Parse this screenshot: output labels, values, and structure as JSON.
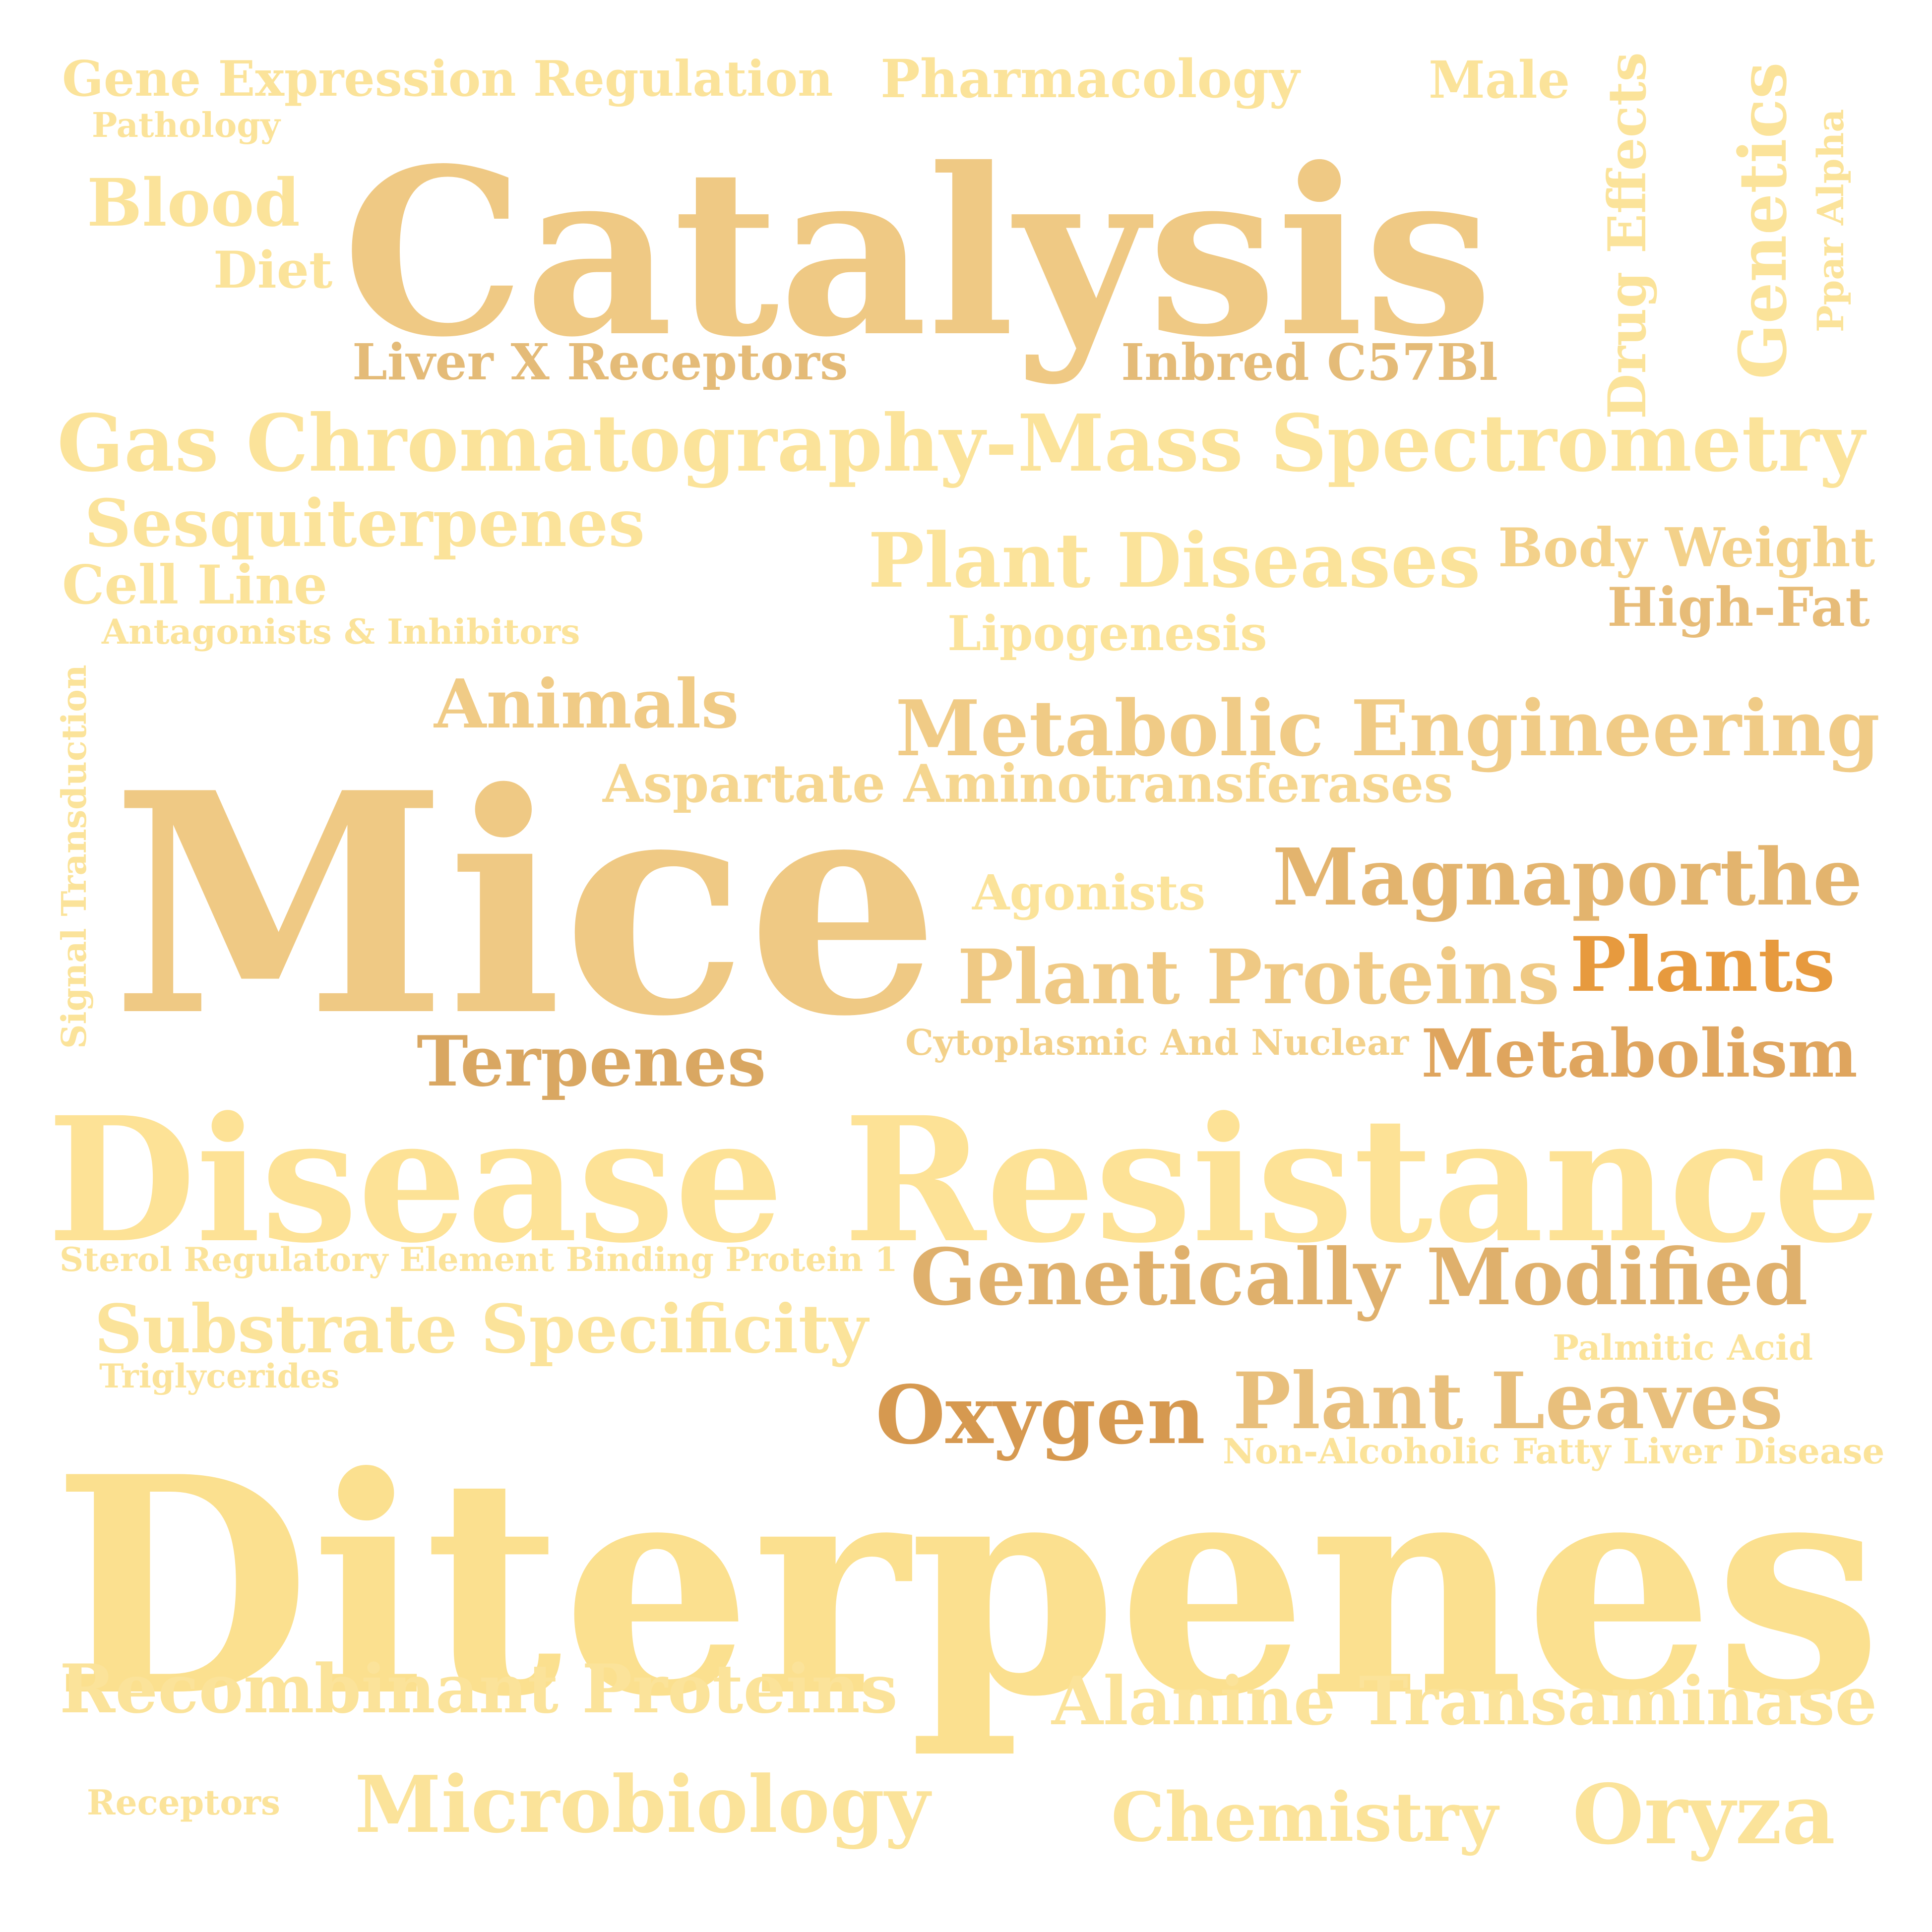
{
  "words": [
    {
      "text": "Gene Expression Regulation",
      "color": "#fbe39a",
      "weight": 2
    },
    {
      "text": "Pharmacology",
      "color": "#fbe39a",
      "weight": 2
    },
    {
      "text": "Male",
      "color": "#fbe39a",
      "weight": 2
    },
    {
      "text": "Pathology",
      "color": "#fbe39a",
      "weight": 1
    },
    {
      "text": "Drug Effects",
      "color": "#fbe39a",
      "weight": 2
    },
    {
      "text": "Genetics",
      "color": "#fbe39a",
      "weight": 2
    },
    {
      "text": "Ppar Alpha",
      "color": "#fbe39a",
      "weight": 1
    },
    {
      "text": "Blood",
      "color": "#fbe39a",
      "weight": 3
    },
    {
      "text": "Diet",
      "color": "#fbe39a",
      "weight": 2
    },
    {
      "text": "Catalysis",
      "color": "#efc984",
      "weight": 10
    },
    {
      "text": "Liver X Receptors",
      "color": "#e4bb78",
      "weight": 2
    },
    {
      "text": "Inbred C57Bl",
      "color": "#e4bb78",
      "weight": 2
    },
    {
      "text": "Gas Chromatography-Mass Spectrometry",
      "color": "#fbe39a",
      "weight": 4
    },
    {
      "text": "Sesquiterpenes",
      "color": "#fbe39a",
      "weight": 3
    },
    {
      "text": "Plant Diseases",
      "color": "#fbe39a",
      "weight": 4
    },
    {
      "text": "Body Weight",
      "color": "#f3d18a",
      "weight": 2
    },
    {
      "text": "High-Fat",
      "color": "#e7bc78",
      "weight": 2
    },
    {
      "text": "Cell Line",
      "color": "#fbe39a",
      "weight": 2
    },
    {
      "text": "Antagonists & Inhibitors",
      "color": "#fbe39a",
      "weight": 1
    },
    {
      "text": "Lipogenesis",
      "color": "#fbe39a",
      "weight": 2
    },
    {
      "text": "Signal Transduction",
      "color": "#fbe39a",
      "weight": 1
    },
    {
      "text": "Animals",
      "color": "#f0cb86",
      "weight": 3
    },
    {
      "text": "Metabolic Engineering",
      "color": "#f0cb86",
      "weight": 4
    },
    {
      "text": "Mice",
      "color": "#efc984",
      "weight": 10
    },
    {
      "text": "Aspartate Aminotransferases",
      "color": "#f5d690",
      "weight": 2
    },
    {
      "text": "Magnaporthe",
      "color": "#e3b46e",
      "weight": 4
    },
    {
      "text": "Agonists",
      "color": "#fbe39a",
      "weight": 2
    },
    {
      "text": "Plant Proteins",
      "color": "#efc984",
      "weight": 4
    },
    {
      "text": "Plants",
      "color": "#e79a3e",
      "weight": 3
    },
    {
      "text": "Cytoplasmic And Nuclear",
      "color": "#f3d18a",
      "weight": 1
    },
    {
      "text": "Terpenes",
      "color": "#d9a762",
      "weight": 3
    },
    {
      "text": "Metabolism",
      "color": "#dfa55e",
      "weight": 3
    },
    {
      "text": "Disease Resistance",
      "color": "#fde296",
      "weight": 8
    },
    {
      "text": "Sterol Regulatory Element Binding Protein 1",
      "color": "#fbe39a",
      "weight": 1
    },
    {
      "text": "Genetically Modified",
      "color": "#dfb06c",
      "weight": 4
    },
    {
      "text": "Substrate Specificity",
      "color": "#fbe39a",
      "weight": 4
    },
    {
      "text": "Palmitic Acid",
      "color": "#fbe39a",
      "weight": 1
    },
    {
      "text": "Triglycerides",
      "color": "#fbe39a",
      "weight": 1
    },
    {
      "text": "Oxygen",
      "color": "#d69950",
      "weight": 4
    },
    {
      "text": "Plant Leaves",
      "color": "#e8bf7c",
      "weight": 4
    },
    {
      "text": "Non-Alcoholic Fatty Liver Disease",
      "color": "#fbe39a",
      "weight": 1
    },
    {
      "text": "Diterpenes",
      "color": "#fbe08f",
      "weight": 10
    },
    {
      "text": "Recombinant Proteins",
      "color": "#fbe39a",
      "weight": 4
    },
    {
      "text": "Alanine Transaminase",
      "color": "#fbe39a",
      "weight": 4
    },
    {
      "text": "Receptors",
      "color": "#fbe39a",
      "weight": 1
    },
    {
      "text": "Microbiology",
      "color": "#fbe39a",
      "weight": 4
    },
    {
      "text": "Chemistry",
      "color": "#fbe39a",
      "weight": 3
    },
    {
      "text": "Oryza",
      "color": "#fbe39a",
      "weight": 3
    }
  ]
}
